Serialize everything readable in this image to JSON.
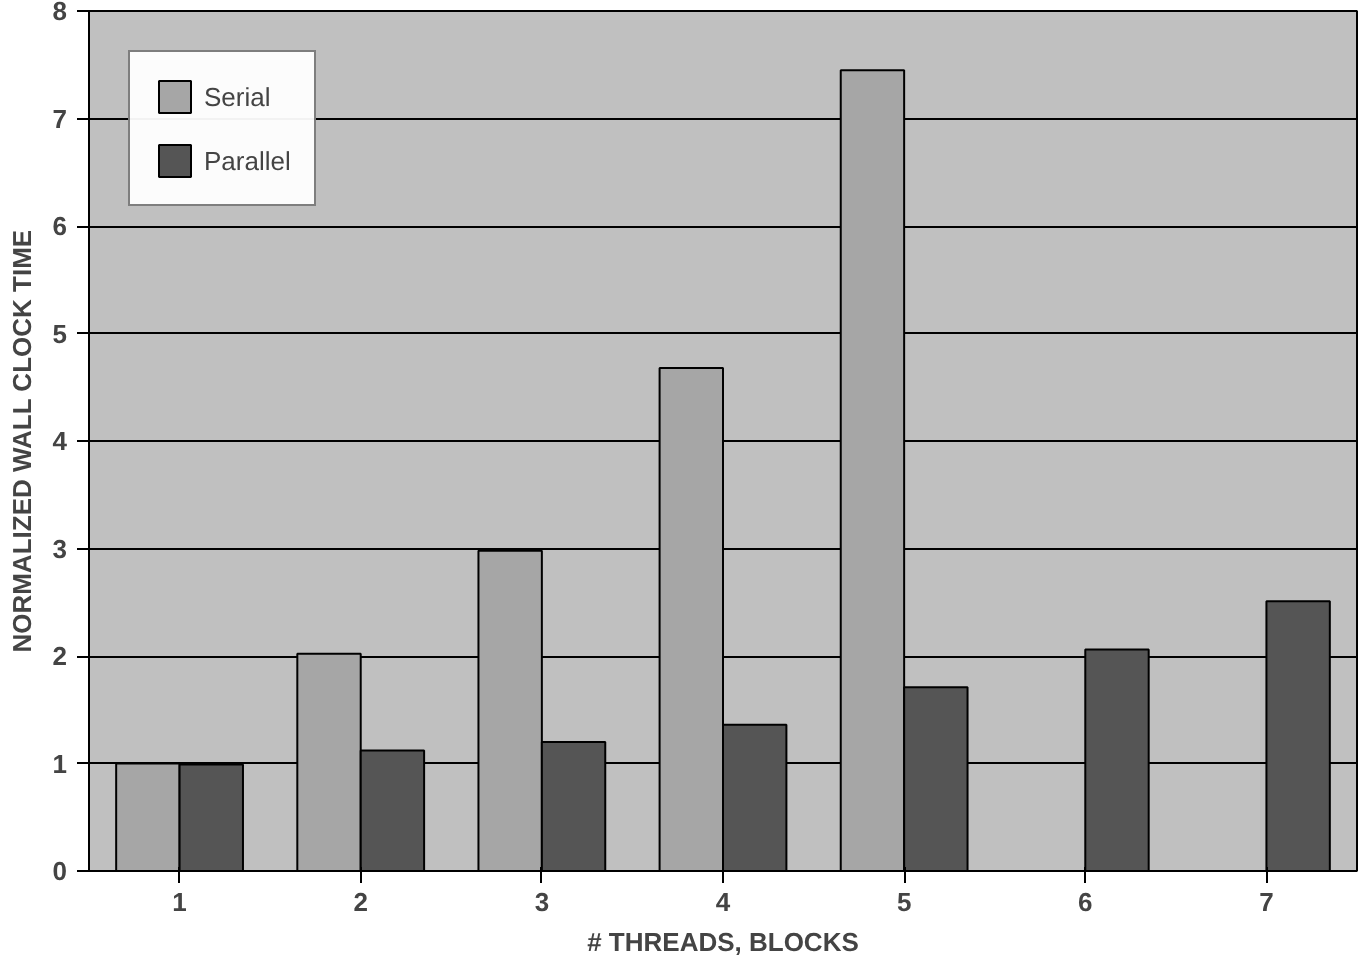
{
  "chart_data": {
    "type": "bar",
    "xlabel": "# THREADS, BLOCKS",
    "ylabel": "NORMALIZED WALL CLOCK TIME",
    "categories": [
      "1",
      "2",
      "3",
      "4",
      "5",
      "6",
      "7"
    ],
    "series": [
      {
        "name": "Serial",
        "color": "#a6a6a6",
        "values": [
          1.0,
          2.02,
          2.98,
          4.68,
          7.45,
          null,
          null
        ]
      },
      {
        "name": "Parallel",
        "color": "#555555",
        "values": [
          0.99,
          1.12,
          1.2,
          1.36,
          1.71,
          2.06,
          2.51
        ]
      }
    ],
    "ylim": [
      0,
      8
    ],
    "yticks": [
      0,
      1,
      2,
      3,
      4,
      5,
      6,
      7,
      8
    ],
    "grid": "y",
    "legend": "top left"
  }
}
